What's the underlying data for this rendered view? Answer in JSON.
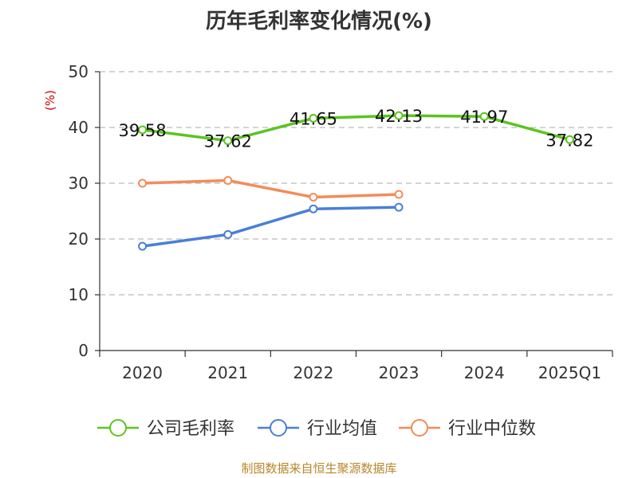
{
  "chart_data": {
    "type": "line",
    "title": "历年毛利率变化情况(%)",
    "ylabel": "(%)",
    "xlabel": "",
    "categories": [
      "2020",
      "2021",
      "2022",
      "2023",
      "2024",
      "2025Q1"
    ],
    "ylim": [
      0,
      50
    ],
    "yticks": [
      0,
      10,
      20,
      30,
      40,
      50
    ],
    "grid": true,
    "legend_position": "bottom",
    "series": [
      {
        "name": "公司毛利率",
        "color": "#5cc421",
        "show_labels": true,
        "values": [
          39.58,
          37.62,
          41.65,
          42.13,
          41.97,
          37.82
        ]
      },
      {
        "name": "行业均值",
        "color": "#4a7fd4",
        "show_labels": false,
        "values": [
          18.7,
          20.8,
          25.4,
          25.7,
          null,
          null
        ]
      },
      {
        "name": "行业中位数",
        "color": "#f28c5a",
        "show_labels": false,
        "values": [
          30.0,
          30.5,
          27.5,
          28.0,
          null,
          null
        ]
      }
    ],
    "source": "制图数据来自恒生聚源数据库"
  }
}
